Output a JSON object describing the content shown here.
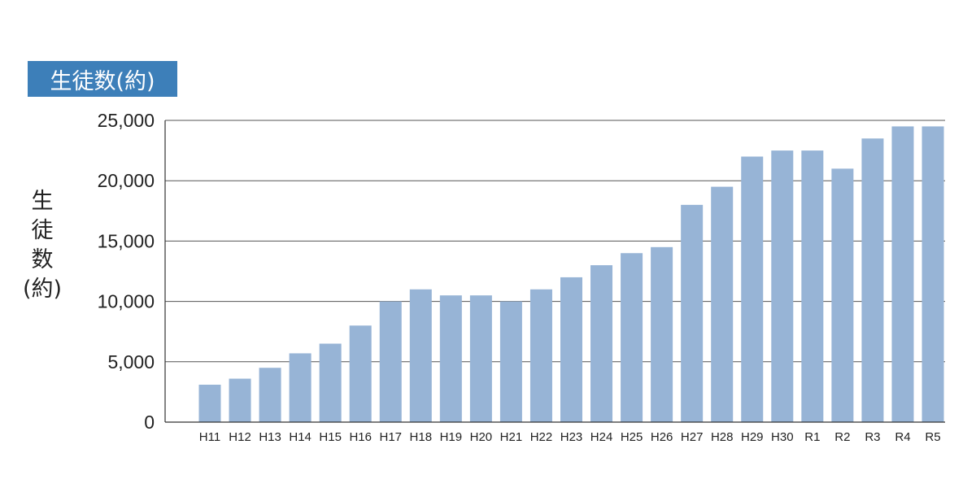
{
  "chart_data": {
    "type": "bar",
    "title": "生徒数(約)",
    "ylabel": "生徒数(約)",
    "xlabel": "",
    "categories": [
      "H11",
      "H12",
      "H13",
      "H14",
      "H15",
      "H16",
      "H17",
      "H18",
      "H19",
      "H20",
      "H21",
      "H22",
      "H23",
      "H24",
      "H25",
      "H26",
      "H27",
      "H28",
      "H29",
      "H30",
      "R1",
      "R2",
      "R3",
      "R4",
      "R5"
    ],
    "values": [
      3100,
      3600,
      4500,
      5700,
      6500,
      8000,
      10000,
      11000,
      10500,
      10500,
      10000,
      11000,
      12000,
      13000,
      14000,
      14500,
      18000,
      19500,
      22000,
      22500,
      22500,
      21000,
      23500,
      24500,
      24500
    ],
    "ylim": [
      0,
      25000
    ],
    "yticks": [
      0,
      5000,
      10000,
      15000,
      20000,
      25000
    ],
    "ytick_labels": [
      "0",
      "5,000",
      "10,000",
      "15,000",
      "20,000",
      "25,000"
    ],
    "grid": true,
    "bar_color": "#97b4d6",
    "grid_color": "#555555",
    "title_bg_color": "#3d7fb9"
  }
}
